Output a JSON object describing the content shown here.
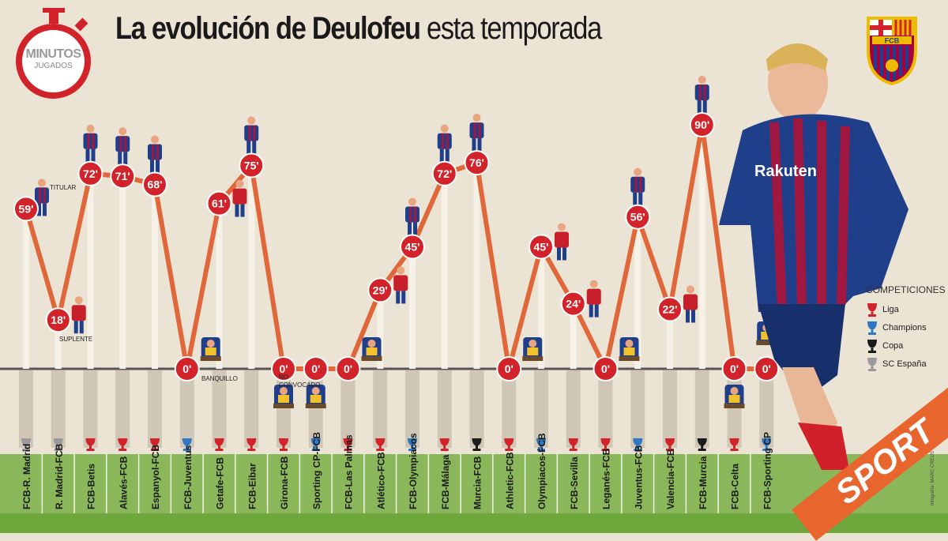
{
  "title": {
    "bold": "La evolución de Deulofeu",
    "light": "esta temporada"
  },
  "badge": {
    "line1": "MINUTOS",
    "line2": "JUGADOS"
  },
  "legend": {
    "title": "COMPETICIONES",
    "items": [
      {
        "key": "liga",
        "label": "Liga",
        "color": "#d2232a"
      },
      {
        "key": "champions",
        "label": "Champions",
        "color": "#2f78c4"
      },
      {
        "key": "copa",
        "label": "Copa",
        "color": "#1a1a1a"
      },
      {
        "key": "sc",
        "label": "SC España",
        "color": "#9a9a9a"
      }
    ]
  },
  "status_labels": {
    "titular": "TITULAR",
    "suplente": "SUPLENTE",
    "banquillo": "BANQUILLO",
    "no_convocado": "NO CONVOCADO"
  },
  "jersey_sponsor": "Rakuten",
  "crest_text": "FCB",
  "brand": "SPORT",
  "credit": "Infografía: MARC CREUS",
  "colors": {
    "line": "#e0673a",
    "circle": "#d2232a",
    "green": "#8ab75a",
    "green_dark": "#6ea83c"
  },
  "chart_data": {
    "type": "line",
    "title": "La evolución de Deulofeu esta temporada",
    "ylabel": "MINUTOS JUGADOS",
    "ylim": [
      0,
      90
    ],
    "categories": [
      "FCB-R. Madrid",
      "R. Madrid-FCB",
      "FCB-Betis",
      "Alavés-FCB",
      "Espanyol-FCB",
      "FCB-Juventus",
      "Getafe-FCB",
      "FCB-Eibar",
      "Girona-FCB",
      "Sporting CP-FCB",
      "FCB-Las Palmas",
      "Atlético-FCB",
      "FCB-Olympiacos",
      "FCB-Málaga",
      "Murcia-FCB",
      "Athletic-FCB",
      "Olympiacos-FCB",
      "FCB-Sevilla",
      "Leganés-FCB",
      "Juventus-FCB",
      "Valencia-FCB",
      "FCB-Murcia",
      "FCB-Celta",
      "FCB-Sporting CP"
    ],
    "values": [
      59,
      18,
      72,
      71,
      68,
      0,
      61,
      75,
      0,
      0,
      0,
      29,
      45,
      72,
      76,
      0,
      45,
      24,
      0,
      56,
      22,
      90,
      0,
      0
    ],
    "value_labels": [
      "59'",
      "18'",
      "72'",
      "71'",
      "68'",
      "0'",
      "61'",
      "75'",
      "0'",
      "0'",
      "0'",
      "29'",
      "45'",
      "72'",
      "76'",
      "0'",
      "45'",
      "24'",
      "0'",
      "56'",
      "22'",
      "90'",
      "0'",
      "0'"
    ],
    "competition": [
      "sc",
      "sc",
      "liga",
      "liga",
      "liga",
      "champions",
      "liga",
      "liga",
      "liga",
      "champions",
      "liga",
      "liga",
      "champions",
      "liga",
      "copa",
      "liga",
      "champions",
      "liga",
      "liga",
      "champions",
      "liga",
      "copa",
      "liga",
      "champions"
    ],
    "status": [
      "titular",
      "suplente",
      "titular",
      "titular",
      "titular",
      "banquillo",
      "suplente",
      "titular",
      "no_convocado",
      "no_convocado",
      "banquillo",
      "suplente",
      "titular",
      "titular",
      "titular",
      "banquillo",
      "suplente",
      "suplente",
      "banquillo",
      "titular",
      "suplente",
      "titular",
      "no_convocado",
      "banquillo"
    ]
  }
}
